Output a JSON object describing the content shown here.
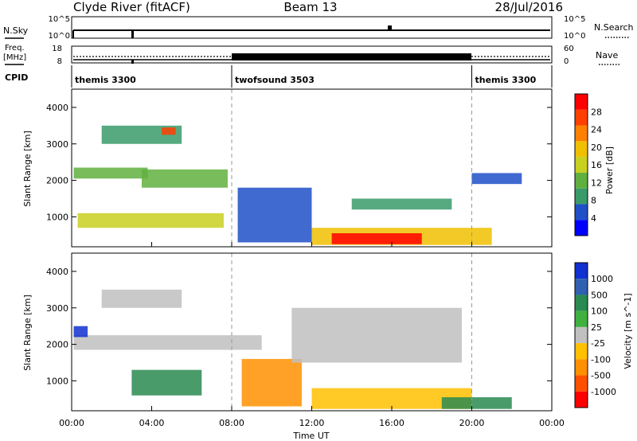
{
  "header": {
    "station": "Clyde River (fitACF)",
    "beam": "Beam 13",
    "date": "28/Jul/2016"
  },
  "top_panels": {
    "nsky_label": "N.Sky",
    "nsky_ticks": [
      "10^5",
      "10^0"
    ],
    "nsearch_label": "N.Search",
    "nsearch_ticks": [
      "10^5",
      "10^0"
    ],
    "freq_label": "Freq.",
    "freq_unit": "[MHz]",
    "freq_ticks": [
      "18",
      "8"
    ],
    "nave_label": "Nave",
    "nave_ticks": [
      "60",
      "0"
    ],
    "cpid_label": "CPID",
    "cpid_segments": [
      {
        "name": "themis 3300",
        "start": 0,
        "end": 8
      },
      {
        "name": "twofsound 3503",
        "start": 8,
        "end": 20
      },
      {
        "name": "themis 3300",
        "start": 20,
        "end": 24
      }
    ]
  },
  "colors": {
    "power_scale": [
      "#0000ff",
      "#2050c8",
      "#3a9a6a",
      "#60b040",
      "#c8d020",
      "#f0c000",
      "#ff8000",
      "#ff4000",
      "#ff0000"
    ],
    "velocity_scale": [
      "#1030d0",
      "#3060b0",
      "#2a8a50",
      "#40b040",
      "#c0c0c0",
      "#ffc000",
      "#ff9000",
      "#ff5000",
      "#ff0000"
    ]
  },
  "chart_data": [
    {
      "type": "heatmap",
      "title": "Power",
      "xlabel": "Time UT",
      "ylabel": "Slant Range [km]",
      "x_ticks": [
        "00:00",
        "04:00",
        "08:00",
        "12:00",
        "16:00",
        "20:00",
        "00:00"
      ],
      "xlim": [
        0,
        24
      ],
      "y_ticks": [
        "1000",
        "2000",
        "3000",
        "4000"
      ],
      "ylim": [
        180,
        4500
      ],
      "colorbar": {
        "label": "Power [dB]",
        "ticks": [
          "4",
          "8",
          "12",
          "16",
          "20",
          "24",
          "28"
        ],
        "range": [
          0,
          32
        ]
      },
      "regions": [
        {
          "t0": 0.1,
          "t1": 3.8,
          "r0": 2050,
          "r1": 2350,
          "value": 12
        },
        {
          "t0": 1.5,
          "t1": 5.5,
          "r0": 3000,
          "r1": 3500,
          "value": 10
        },
        {
          "t0": 4.5,
          "t1": 5.2,
          "r0": 3250,
          "r1": 3450,
          "value": 26
        },
        {
          "t0": 0.3,
          "t1": 7.6,
          "r0": 700,
          "r1": 1100,
          "value": 16
        },
        {
          "t0": 3.5,
          "t1": 7.8,
          "r0": 1800,
          "r1": 2300,
          "value": 14
        },
        {
          "t0": 8.3,
          "t1": 12.0,
          "r0": 300,
          "r1": 1800,
          "value": 6
        },
        {
          "t0": 12.0,
          "t1": 21.0,
          "r0": 230,
          "r1": 700,
          "value": 20
        },
        {
          "t0": 13.0,
          "t1": 17.5,
          "r0": 250,
          "r1": 550,
          "value": 30
        },
        {
          "t0": 14.0,
          "t1": 19.0,
          "r0": 1200,
          "r1": 1500,
          "value": 8
        },
        {
          "t0": 20.0,
          "t1": 22.5,
          "r0": 1900,
          "r1": 2200,
          "value": 4
        }
      ]
    },
    {
      "type": "heatmap",
      "title": "Velocity",
      "xlabel": "Time UT",
      "ylabel": "Slant Range [km]",
      "x_ticks": [
        "00:00",
        "04:00",
        "08:00",
        "12:00",
        "16:00",
        "20:00",
        "00:00"
      ],
      "xlim": [
        0,
        24
      ],
      "y_ticks": [
        "1000",
        "2000",
        "3000",
        "4000"
      ],
      "ylim": [
        180,
        4500
      ],
      "colorbar": {
        "label": "Velocity [m s^-1]",
        "ticks": [
          "1000",
          "500",
          "100",
          "25",
          "-25",
          "-100",
          "-500",
          "-1000"
        ]
      },
      "regions": [
        {
          "t0": 0.1,
          "t1": 9.5,
          "r0": 1850,
          "r1": 2250,
          "value": 0
        },
        {
          "t0": 1.5,
          "t1": 5.5,
          "r0": 3000,
          "r1": 3500,
          "value": 20
        },
        {
          "t0": 3.0,
          "t1": 6.5,
          "r0": 600,
          "r1": 1300,
          "value": 150
        },
        {
          "t0": 8.5,
          "t1": 11.5,
          "r0": 300,
          "r1": 1600,
          "value": -150
        },
        {
          "t0": 12.0,
          "t1": 20.0,
          "r0": 230,
          "r1": 800,
          "value": -80
        },
        {
          "t0": 18.5,
          "t1": 22.0,
          "r0": 230,
          "r1": 550,
          "value": 120
        },
        {
          "t0": 11.0,
          "t1": 19.5,
          "r0": 1500,
          "r1": 3000,
          "value": 0
        },
        {
          "t0": 0.1,
          "t1": 0.8,
          "r0": 2200,
          "r1": 2500,
          "value": 600
        }
      ]
    }
  ]
}
